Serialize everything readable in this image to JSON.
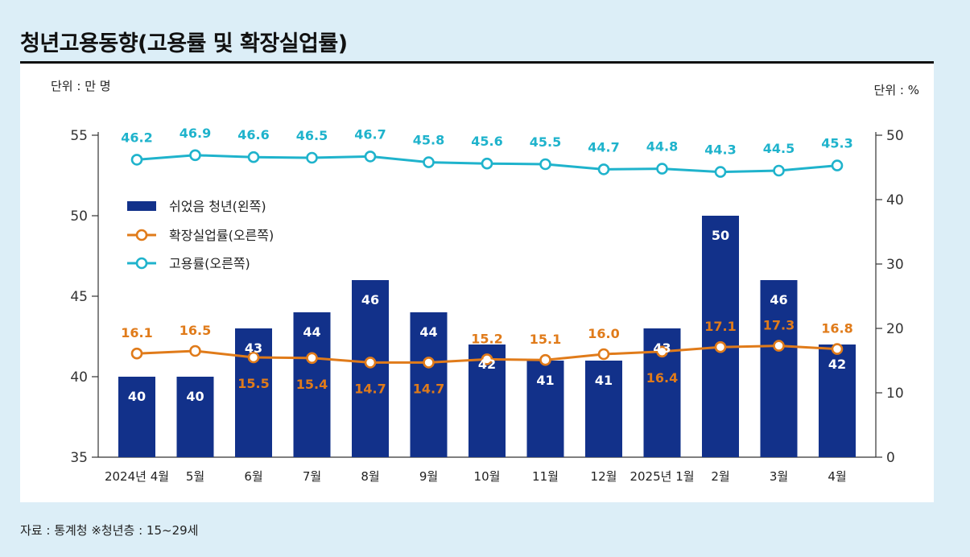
{
  "title": "청년고용동향(고용률 및 확장실업률)",
  "source": "자료 : 통계청 ※청년층 : 15~29세",
  "colors": {
    "bar": "#12318a",
    "expanded_unemployment": "#e07b1a",
    "employment_rate": "#1fb3cc",
    "axis": "#333333"
  },
  "chart_data": {
    "type": "bar",
    "left_unit": "단위 : 만 명",
    "right_unit": "단위 : %",
    "categories": [
      "2024년 4월",
      "5월",
      "6월",
      "7월",
      "8월",
      "9월",
      "10월",
      "11월",
      "12월",
      "2025년 1월",
      "2월",
      "3월",
      "4월"
    ],
    "left_axis": {
      "min": 35,
      "max": 55,
      "ticks": [
        "35",
        "40",
        "45",
        "50",
        "55"
      ]
    },
    "right_axis": {
      "min": 0,
      "max": 50,
      "ticks": [
        "0",
        "10",
        "20",
        "30",
        "40",
        "50"
      ]
    },
    "legend_placement": "top-left",
    "series": [
      {
        "name": "쉬었음 청년(왼쪽)",
        "kind": "bar",
        "axis": "left",
        "values": [
          40,
          40,
          43,
          44,
          46,
          44,
          42,
          41,
          41,
          43,
          50,
          46,
          42
        ],
        "labels": [
          "40",
          "40",
          "43",
          "44",
          "46",
          "44",
          "42",
          "41",
          "41",
          "43",
          "50",
          "46",
          "42"
        ]
      },
      {
        "name": "확장실업률(오른쪽)",
        "kind": "line",
        "axis": "right",
        "values": [
          16.1,
          16.5,
          15.5,
          15.4,
          14.7,
          14.7,
          15.2,
          15.1,
          16.0,
          16.4,
          17.1,
          17.3,
          16.8
        ],
        "labels": [
          "16.1",
          "16.5",
          "15.5",
          "15.4",
          "14.7",
          "14.7",
          "15.2",
          "15.1",
          "16.0",
          "16.4",
          "17.1",
          "17.3",
          "16.8"
        ]
      },
      {
        "name": "고용률(오른쪽)",
        "kind": "line",
        "axis": "right",
        "values": [
          46.2,
          46.9,
          46.6,
          46.5,
          46.7,
          45.8,
          45.6,
          45.5,
          44.7,
          44.8,
          44.3,
          44.5,
          45.3
        ],
        "labels": [
          "46.2",
          "46.9",
          "46.6",
          "46.5",
          "46.7",
          "45.8",
          "45.6",
          "45.5",
          "44.7",
          "44.8",
          "44.3",
          "44.5",
          "45.3"
        ]
      }
    ]
  }
}
